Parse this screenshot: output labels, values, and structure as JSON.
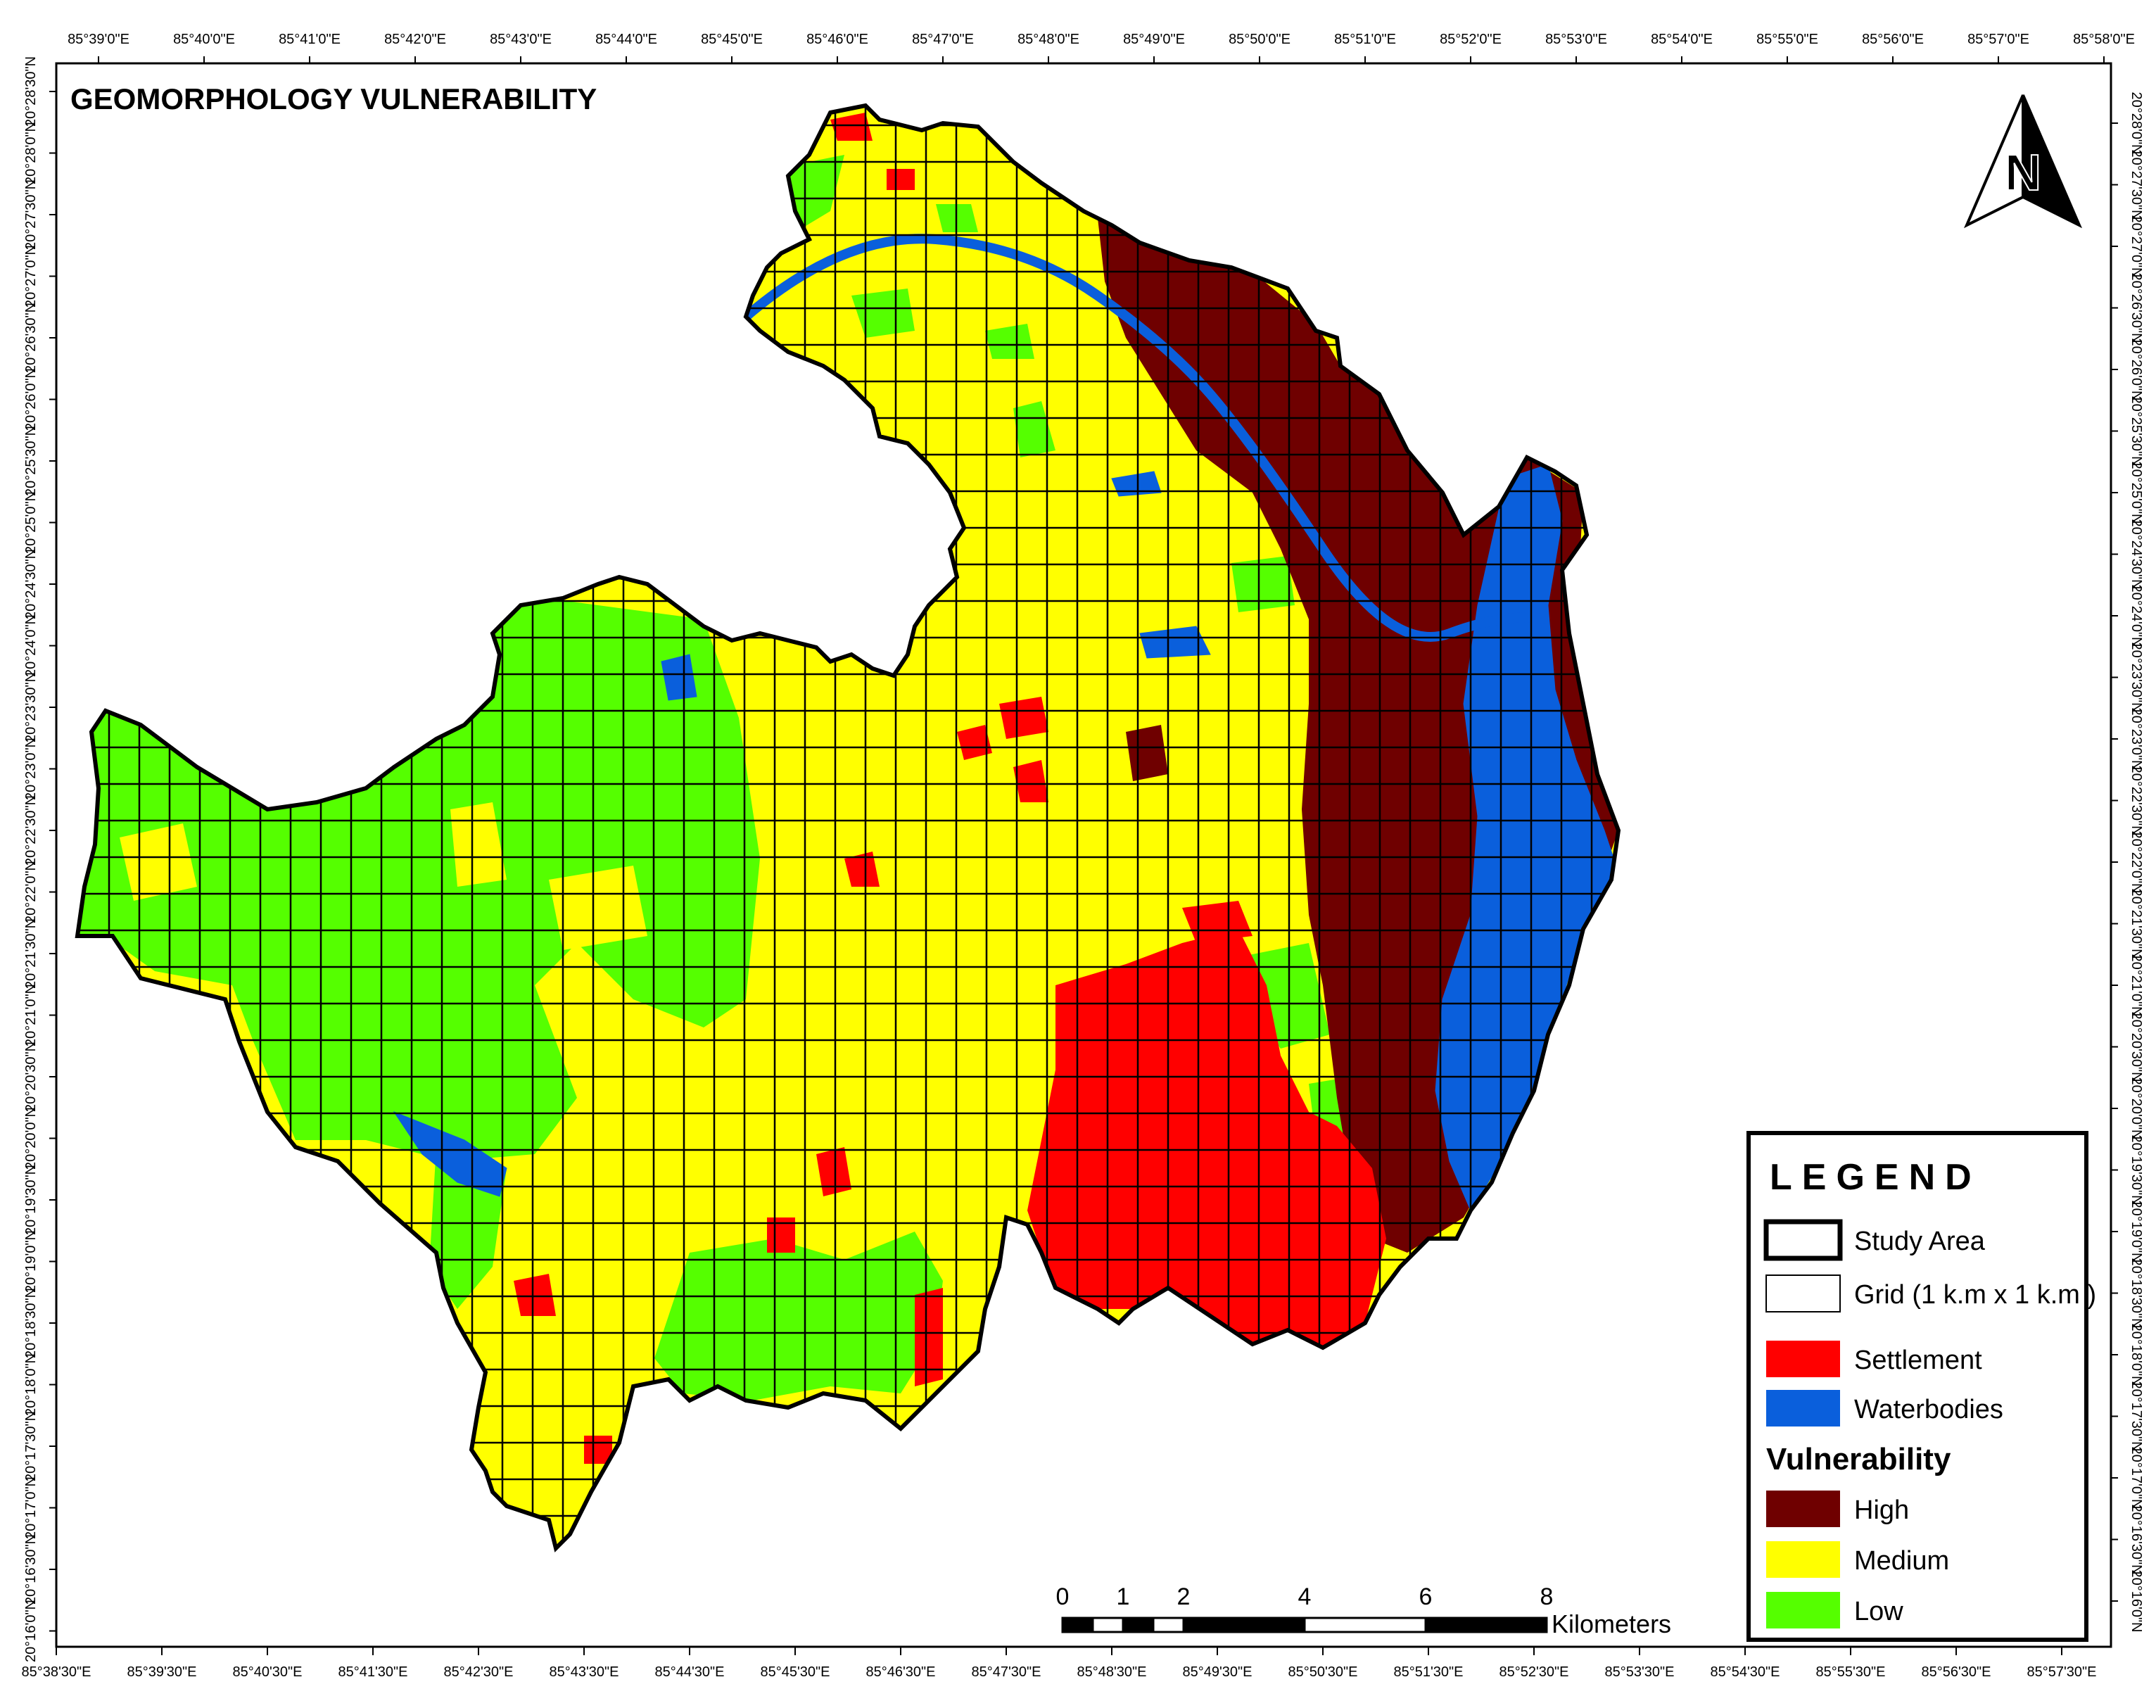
{
  "title": "GEOMORPHOLOGY VULNERABILITY",
  "north_arrow": {
    "letter": "N",
    "icon": "north-arrow-icon"
  },
  "top_ticks": [
    "85°39'0\"E",
    "85°40'0\"E",
    "85°41'0\"E",
    "85°42'0\"E",
    "85°43'0\"E",
    "85°44'0\"E",
    "85°45'0\"E",
    "85°46'0\"E",
    "85°47'0\"E",
    "85°48'0\"E",
    "85°49'0\"E",
    "85°50'0\"E",
    "85°51'0\"E",
    "85°52'0\"E",
    "85°53'0\"E",
    "85°54'0\"E",
    "85°55'0\"E",
    "85°56'0\"E",
    "85°57'0\"E",
    "85°58'0\"E"
  ],
  "bottom_ticks": [
    "85°38'30\"E",
    "85°39'30\"E",
    "85°40'30\"E",
    "85°41'30\"E",
    "85°42'30\"E",
    "85°43'30\"E",
    "85°44'30\"E",
    "85°45'30\"E",
    "85°46'30\"E",
    "85°47'30\"E",
    "85°48'30\"E",
    "85°49'30\"E",
    "85°50'30\"E",
    "85°51'30\"E",
    "85°52'30\"E",
    "85°53'30\"E",
    "85°54'30\"E",
    "85°55'30\"E",
    "85°56'30\"E",
    "85°57'30\"E"
  ],
  "left_ticks": [
    "20°28'30\"N",
    "20°28'0\"N",
    "20°27'30\"N",
    "20°27'0\"N",
    "20°26'30\"N",
    "20°26'0\"N",
    "20°25'30\"N",
    "20°25'0\"N",
    "20°24'30\"N",
    "20°24'0\"N",
    "20°23'30\"N",
    "20°23'0\"N",
    "20°22'30\"N",
    "20°22'0\"N",
    "20°21'30\"N",
    "20°21'0\"N",
    "20°20'30\"N",
    "20°20'0\"N",
    "20°19'30\"N",
    "20°19'0\"N",
    "20°18'30\"N",
    "20°18'0\"N",
    "20°17'30\"N",
    "20°17'0\"N",
    "20°16'30\"N",
    "20°16'0\"N"
  ],
  "right_ticks": [
    "20°28'0\"N",
    "20°27'30\"N",
    "20°27'0\"N",
    "20°26'30\"N",
    "20°26'0\"N",
    "20°25'30\"N",
    "20°25'0\"N",
    "20°24'30\"N",
    "20°24'0\"N",
    "20°23'30\"N",
    "20°23'0\"N",
    "20°22'30\"N",
    "20°22'0\"N",
    "20°21'30\"N",
    "20°21'0\"N",
    "20°20'30\"N",
    "20°20'0\"N",
    "20°19'30\"N",
    "20°19'0\"N",
    "20°18'30\"N",
    "20°18'0\"N",
    "20°17'30\"N",
    "20°17'0\"N",
    "20°16'30\"N",
    "20°16'0\"N"
  ],
  "scale_bar": {
    "labels": [
      "0",
      "1",
      "2",
      "4",
      "6",
      "8"
    ],
    "unit": "Kilometers"
  },
  "legend": {
    "title": "LEGEND",
    "study_area": "Study Area",
    "grid": "Grid (1 k.m x 1 k.m )",
    "settlement": "Settlement",
    "waterbodies": "Waterbodies",
    "vulnerability_title": "Vulnerability",
    "high": "High",
    "medium": "Medium",
    "low": "Low"
  },
  "colors": {
    "high": "#6f0000",
    "medium": "#ffff00",
    "low": "#55ff00",
    "settlement": "#ff0000",
    "waterbodies": "#0a5fdc"
  }
}
